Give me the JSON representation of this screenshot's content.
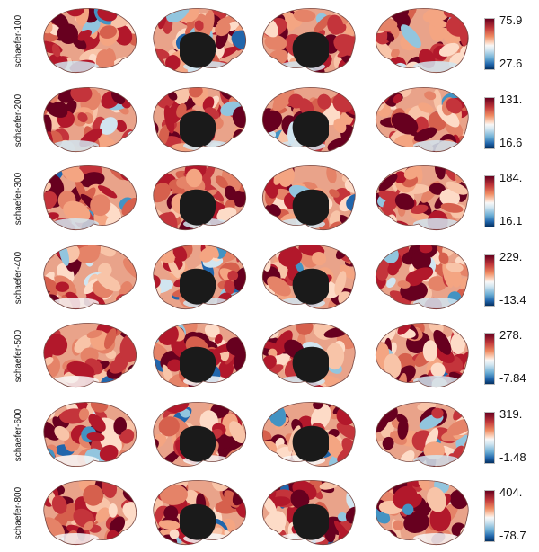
{
  "rows": [
    {
      "label": "schaefer-100",
      "max": "75.9",
      "min": "27.6"
    },
    {
      "label": "schaefer-200",
      "max": "131.",
      "min": "16.6"
    },
    {
      "label": "schaefer-300",
      "max": "184.",
      "min": "16.1"
    },
    {
      "label": "schaefer-400",
      "max": "229.",
      "min": "-13.4"
    },
    {
      "label": "schaefer-500",
      "max": "278.",
      "min": "-7.84"
    },
    {
      "label": "schaefer-600",
      "max": "319.",
      "min": "-1.48"
    },
    {
      "label": "schaefer-800",
      "max": "404.",
      "min": "-78.7"
    }
  ],
  "views": [
    "left-lateral",
    "left-medial",
    "right-medial",
    "right-lateral"
  ],
  "colormap": {
    "high": "#b2182b",
    "mid": "#f7f7f7",
    "low": "#2166ac",
    "medial_wall": "#1a1a1a"
  }
}
